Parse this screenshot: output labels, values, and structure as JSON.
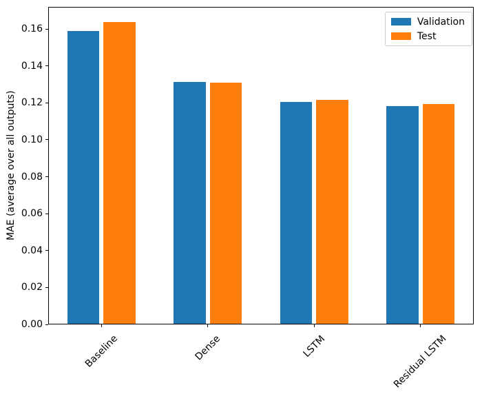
{
  "chart_data": {
    "type": "bar",
    "title": "",
    "categories": [
      "Baseline",
      "Dense",
      "LSTM",
      "Residual LSTM"
    ],
    "series": [
      {
        "name": "Validation",
        "color": "#1f77b4",
        "values": [
          0.1589,
          0.1312,
          0.1204,
          0.1184
        ]
      },
      {
        "name": "Test",
        "color": "#ff7f0e",
        "values": [
          0.1638,
          0.1311,
          0.1217,
          0.1193
        ]
      }
    ],
    "xlabel": "",
    "ylabel": "MAE (average over all outputs)",
    "ylim": [
      0,
      0.172
    ],
    "yticks": [
      0.0,
      0.02,
      0.04,
      0.06,
      0.08,
      0.1,
      0.12,
      0.14,
      0.16
    ],
    "ytick_labels": [
      "0.00",
      "0.02",
      "0.04",
      "0.06",
      "0.08",
      "0.10",
      "0.12",
      "0.14",
      "0.16"
    ],
    "xtick_rotation_deg": 45,
    "bar_width_frac": 0.3,
    "bar_offset_frac": 0.17,
    "grid": false,
    "legend": {
      "position": "upper right"
    },
    "colors": {
      "spine": "#000000",
      "background": "#ffffff",
      "legend_border": "#cccccc"
    }
  }
}
